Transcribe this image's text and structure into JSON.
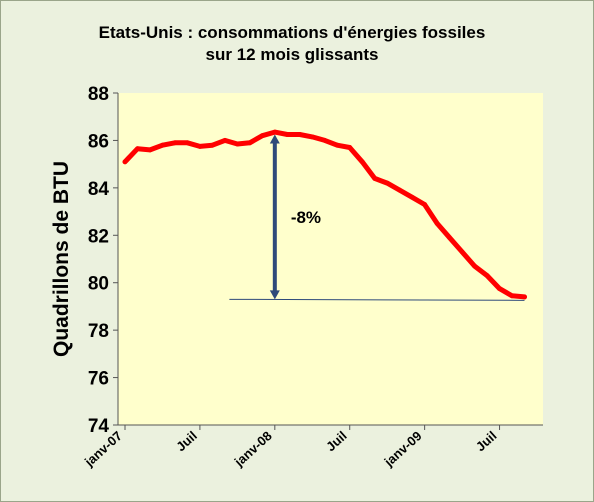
{
  "chart_data": {
    "type": "line",
    "title_line1": "Etats-Unis : consommations d'énergies fossiles",
    "title_line2": "sur 12 mois glissants",
    "ylabel": "Quadrillons de BTU",
    "xlabel": "",
    "ylim": [
      74,
      88
    ],
    "yticks": [
      74,
      76,
      78,
      80,
      82,
      84,
      86,
      88
    ],
    "xlim": [
      0,
      33
    ],
    "xticks": [
      {
        "x": 0,
        "label": "janv-07"
      },
      {
        "x": 6,
        "label": "Juil"
      },
      {
        "x": 12,
        "label": "janv-08"
      },
      {
        "x": 18,
        "label": "Juil"
      },
      {
        "x": 24,
        "label": "janv-09"
      },
      {
        "x": 30,
        "label": "Juil"
      }
    ],
    "grid": false,
    "series": [
      {
        "color": "#ff0000",
        "x": [
          0,
          1,
          2,
          3,
          4,
          5,
          6,
          7,
          8,
          9,
          10,
          11,
          12,
          13,
          14,
          15,
          16,
          17,
          18,
          19,
          20,
          21,
          22,
          23,
          24,
          25,
          26,
          27,
          28,
          29,
          30,
          31,
          32
        ],
        "values": [
          85.1,
          85.65,
          85.6,
          85.8,
          85.9,
          85.9,
          85.75,
          85.8,
          86.0,
          85.85,
          85.9,
          86.2,
          86.35,
          86.25,
          86.25,
          86.15,
          86.0,
          85.8,
          85.7,
          85.1,
          84.4,
          84.2,
          83.9,
          83.6,
          83.3,
          82.5,
          81.9,
          81.3,
          80.7,
          80.3,
          79.75,
          79.45,
          79.4
        ]
      }
    ],
    "annotation": {
      "text": "-8%",
      "arrow": {
        "x": 12,
        "from": 86.25,
        "to": 79.3
      },
      "baseline": {
        "y": 79.3,
        "x_from": 9,
        "x_to": 32
      }
    },
    "colors": {
      "outer_bg": "#ebf1de",
      "plot_bg": "#ffffcc",
      "line": "#ff0000",
      "arrow": "#2e4a7a"
    }
  }
}
